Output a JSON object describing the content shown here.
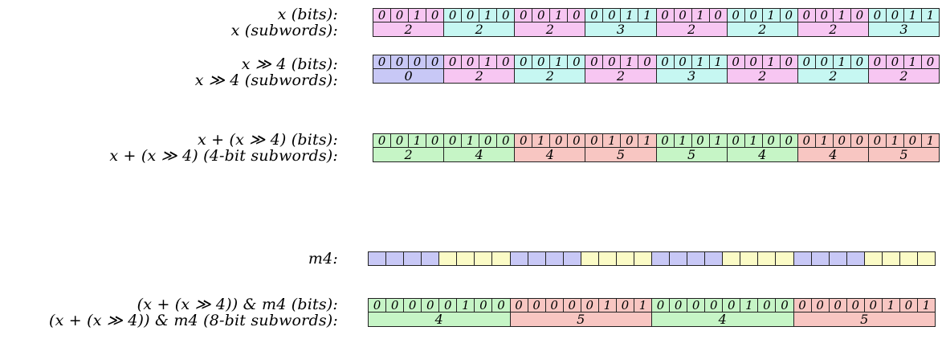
{
  "colors": {
    "pink": "#f7c6f2",
    "cyan": "#c6f7f2",
    "lavender": "#c8c8f6",
    "green": "#c6f5c6",
    "salmon": "#f8c6c2",
    "yellow": "#fbfbc6"
  },
  "rows": [
    {
      "bits_label": "x (bits):",
      "subs_label": "x (subwords):",
      "bits": "00100010001000110010001000100011",
      "subword_bits": 4,
      "subwords": [
        "2",
        "2",
        "2",
        "3",
        "2",
        "2",
        "2",
        "3"
      ],
      "colors": [
        "pink",
        "cyan",
        "pink",
        "cyan",
        "pink",
        "cyan",
        "pink",
        "cyan"
      ]
    },
    {
      "bits_label": "x ≫ 4 (bits):",
      "subs_label": "x ≫ 4 (subwords):",
      "bits": "00000010001000100011001000100010",
      "subword_bits": 4,
      "subwords": [
        "0",
        "2",
        "2",
        "2",
        "3",
        "2",
        "2",
        "2"
      ],
      "colors": [
        "lavender",
        "pink",
        "cyan",
        "pink",
        "cyan",
        "pink",
        "cyan",
        "pink"
      ]
    },
    {
      "bits_label": "x + (x ≫ 4) (bits):",
      "subs_label": "x + (x ≫ 4) (4-bit subwords):",
      "bits": "00100100010001010101010001000101",
      "subword_bits": 4,
      "subwords": [
        "2",
        "4",
        "4",
        "5",
        "5",
        "4",
        "4",
        "5"
      ],
      "colors": [
        "green",
        "green",
        "salmon",
        "salmon",
        "green",
        "green",
        "salmon",
        "salmon"
      ]
    },
    {
      "bits_label": "(x + (x ≫ 4)) & m4 (bits):",
      "subs_label": "(x + (x ≫ 4)) & m4 (8-bit subwords):",
      "bits": "00000100000001010000010000000101",
      "subword_bits": 8,
      "subwords": [
        "4",
        "5",
        "4",
        "5"
      ],
      "colors": [
        "green",
        "salmon",
        "green",
        "salmon"
      ]
    }
  ],
  "mask": {
    "label": "m4:",
    "group_bits": 4,
    "colors": [
      "lavender",
      "yellow",
      "lavender",
      "yellow",
      "lavender",
      "yellow",
      "lavender",
      "yellow"
    ]
  }
}
